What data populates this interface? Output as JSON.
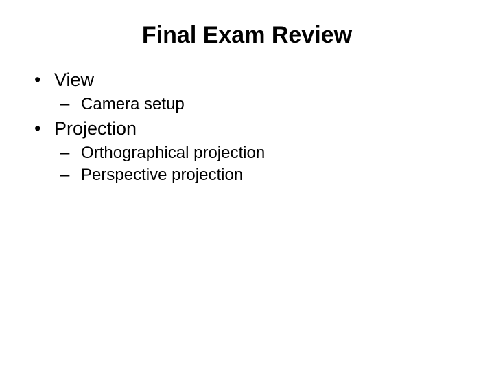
{
  "slide": {
    "title": "Final Exam Review",
    "items": [
      {
        "level": 1,
        "text": "View"
      },
      {
        "level": 2,
        "text": "Camera setup"
      },
      {
        "level": 1,
        "text": "Projection"
      },
      {
        "level": 2,
        "text": "Orthographical projection"
      },
      {
        "level": 2,
        "text": "Perspective projection"
      }
    ],
    "styling": {
      "background_color": "#ffffff",
      "text_color": "#000000",
      "title_fontsize": 34,
      "title_weight": "bold",
      "title_align": "center",
      "level1_fontsize": 27,
      "level1_indent": 10,
      "level1_bullet": "•",
      "level2_fontsize": 24,
      "level2_indent": 48,
      "level2_bullet": "–",
      "font_family": "Arial"
    }
  }
}
